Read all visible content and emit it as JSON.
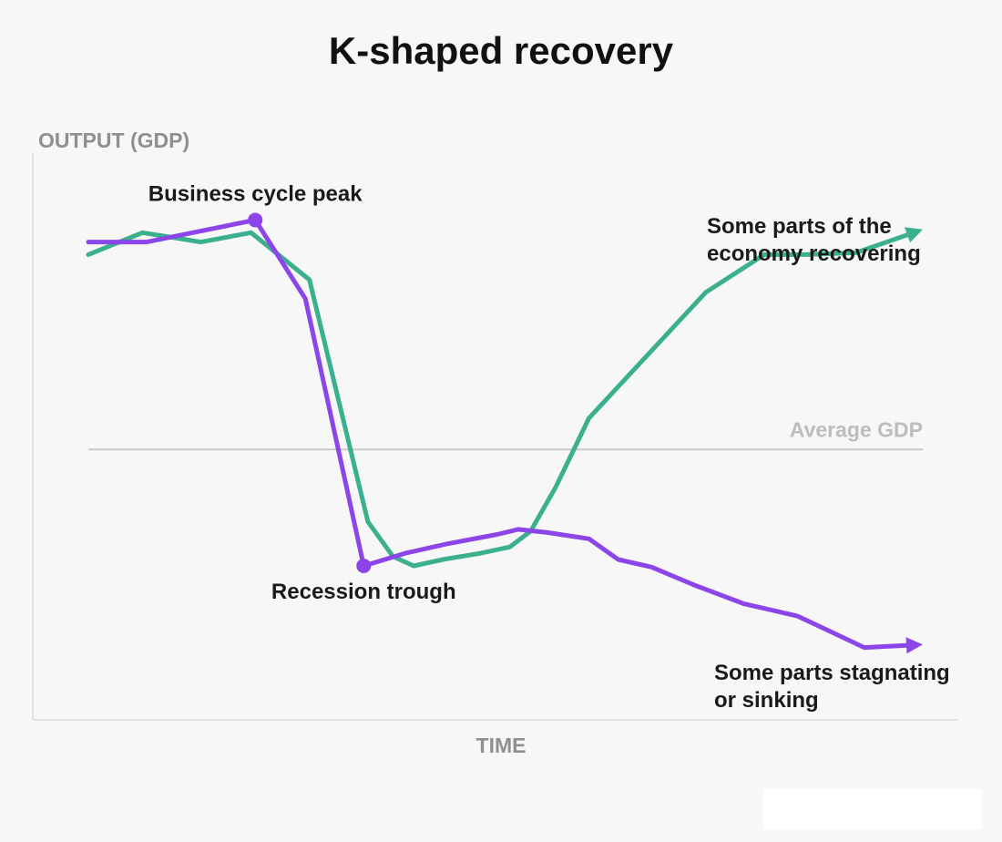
{
  "chart_data": {
    "type": "line",
    "title": "K-shaped recovery",
    "ylabel": "OUTPUT (GDP)",
    "xlabel": "TIME",
    "xlim": [
      0,
      100
    ],
    "ylim": [
      0,
      100
    ],
    "grid": false,
    "reference_line": {
      "label": "Average GDP",
      "y": 43
    },
    "series": [
      {
        "name": "Some parts of the economy recovering",
        "color": "#3bb08f",
        "x": [
          0,
          6.5,
          13.5,
          19.5,
          26.5,
          33.5,
          36.5,
          39,
          42.5,
          47,
          50.5,
          53,
          56,
          60,
          67,
          74,
          81,
          86,
          92,
          100
        ],
        "y": [
          74,
          77.5,
          76,
          77.5,
          70,
          31.5,
          26,
          24.5,
          25.5,
          26.5,
          27.5,
          30,
          37,
          48,
          58,
          68,
          74,
          74,
          74.3,
          78
        ]
      },
      {
        "name": "Some parts stagnating or sinking",
        "color": "#8c45e8",
        "x": [
          0,
          7,
          20,
          26,
          33,
          38,
          43,
          49,
          51.5,
          55,
          60,
          63.5,
          67.5,
          72.5,
          78.5,
          85,
          93,
          100
        ],
        "y": [
          76,
          76,
          79.5,
          67,
          24.5,
          26.5,
          28,
          29.5,
          30.3,
          29.8,
          28.8,
          25.5,
          24.3,
          21.5,
          18.5,
          16.5,
          11.5,
          12
        ]
      }
    ],
    "annotations": [
      {
        "label": "Business cycle peak",
        "x": 20,
        "y": 79.5
      },
      {
        "label": "Recession trough",
        "x": 33,
        "y": 24.5
      }
    ],
    "series_labels": [
      {
        "lines": [
          "Some parts of the",
          "economy recovering"
        ]
      },
      {
        "lines": [
          "Some parts stagnating",
          "or sinking"
        ]
      }
    ]
  }
}
